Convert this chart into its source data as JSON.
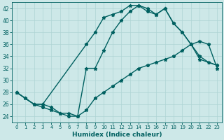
{
  "line1_x": [
    0,
    1,
    2,
    3,
    8,
    9,
    10,
    11,
    12,
    13,
    14,
    15,
    16,
    17,
    18,
    19,
    20,
    21,
    23
  ],
  "line1_y": [
    28,
    27,
    26,
    26,
    36,
    38,
    40.5,
    41,
    41.5,
    42.5,
    42.5,
    41.5,
    41,
    42,
    39.5,
    38,
    36,
    33.5,
    32.5
  ],
  "line2_x": [
    0,
    2,
    3,
    4,
    5,
    6,
    7,
    8,
    9,
    10,
    11,
    12,
    13,
    14,
    15,
    16,
    17,
    18,
    19,
    20,
    21,
    22,
    23
  ],
  "line2_y": [
    28,
    26,
    25.5,
    25,
    24.5,
    24.5,
    24,
    32,
    32,
    35,
    38,
    40,
    41.5,
    42.5,
    42,
    41,
    42,
    39.5,
    38,
    36,
    34,
    33,
    32.5
  ],
  "line3_x": [
    0,
    1,
    2,
    3,
    4,
    5,
    6,
    7,
    8,
    9,
    10,
    11,
    12,
    13,
    14,
    15,
    16,
    17,
    18,
    19,
    20,
    21,
    22,
    23
  ],
  "line3_y": [
    28,
    27,
    26,
    26,
    25.5,
    24.5,
    24,
    24,
    25,
    27,
    28,
    29,
    30,
    31,
    32,
    32.5,
    33,
    33.5,
    34,
    35,
    36,
    36.5,
    36,
    32
  ],
  "color": "#006060",
  "linewidth": 1.0,
  "marker": "*",
  "markersize": 3.5,
  "bg_color": "#cde8e8",
  "grid_color": "#aed4d4",
  "axis_color": "#006060",
  "xlabel": "Humidex (Indice chaleur)",
  "xlim": [
    -0.5,
    23.5
  ],
  "ylim": [
    23,
    43
  ],
  "yticks": [
    24,
    26,
    28,
    30,
    32,
    34,
    36,
    38,
    40,
    42
  ],
  "xticks": [
    0,
    1,
    2,
    3,
    4,
    5,
    6,
    7,
    8,
    9,
    10,
    11,
    12,
    13,
    14,
    15,
    16,
    17,
    18,
    19,
    20,
    21,
    22,
    23
  ]
}
